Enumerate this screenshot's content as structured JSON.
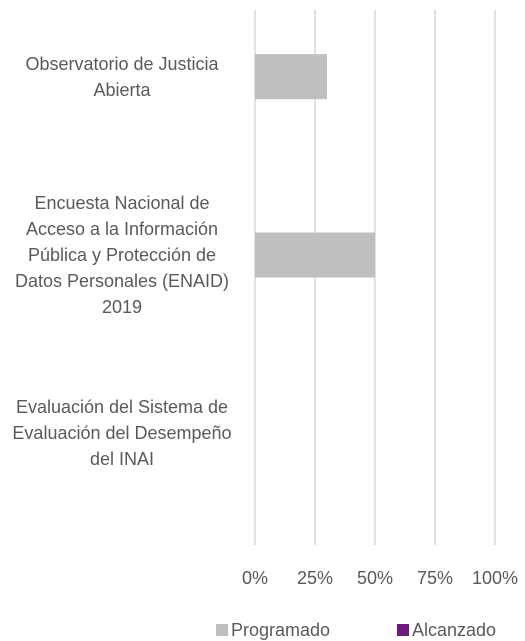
{
  "chart_data": {
    "type": "barh",
    "categories": [
      "Observatorio de Justicia Abierta",
      "Encuesta Nacional de Acceso a la Información Pública y Protección de Datos Personales (ENAID) 2019",
      "Evaluación del Sistema de Evaluación del Desempeño del INAI"
    ],
    "series": [
      {
        "name": "Programado",
        "color": "#bfbfbf",
        "values": [
          30,
          50,
          0
        ]
      },
      {
        "name": "Alcanzado",
        "color": "#6e1a7e",
        "values": [
          0,
          0,
          0
        ]
      }
    ],
    "xlim": [
      0,
      100
    ],
    "xticks": [
      {
        "value": 0,
        "label": "0%"
      },
      {
        "value": 25,
        "label": "25%"
      },
      {
        "value": 50,
        "label": "50%"
      },
      {
        "value": 75,
        "label": "75%"
      },
      {
        "value": 100,
        "label": "100%"
      }
    ],
    "grid": true,
    "legend": "bottom"
  }
}
